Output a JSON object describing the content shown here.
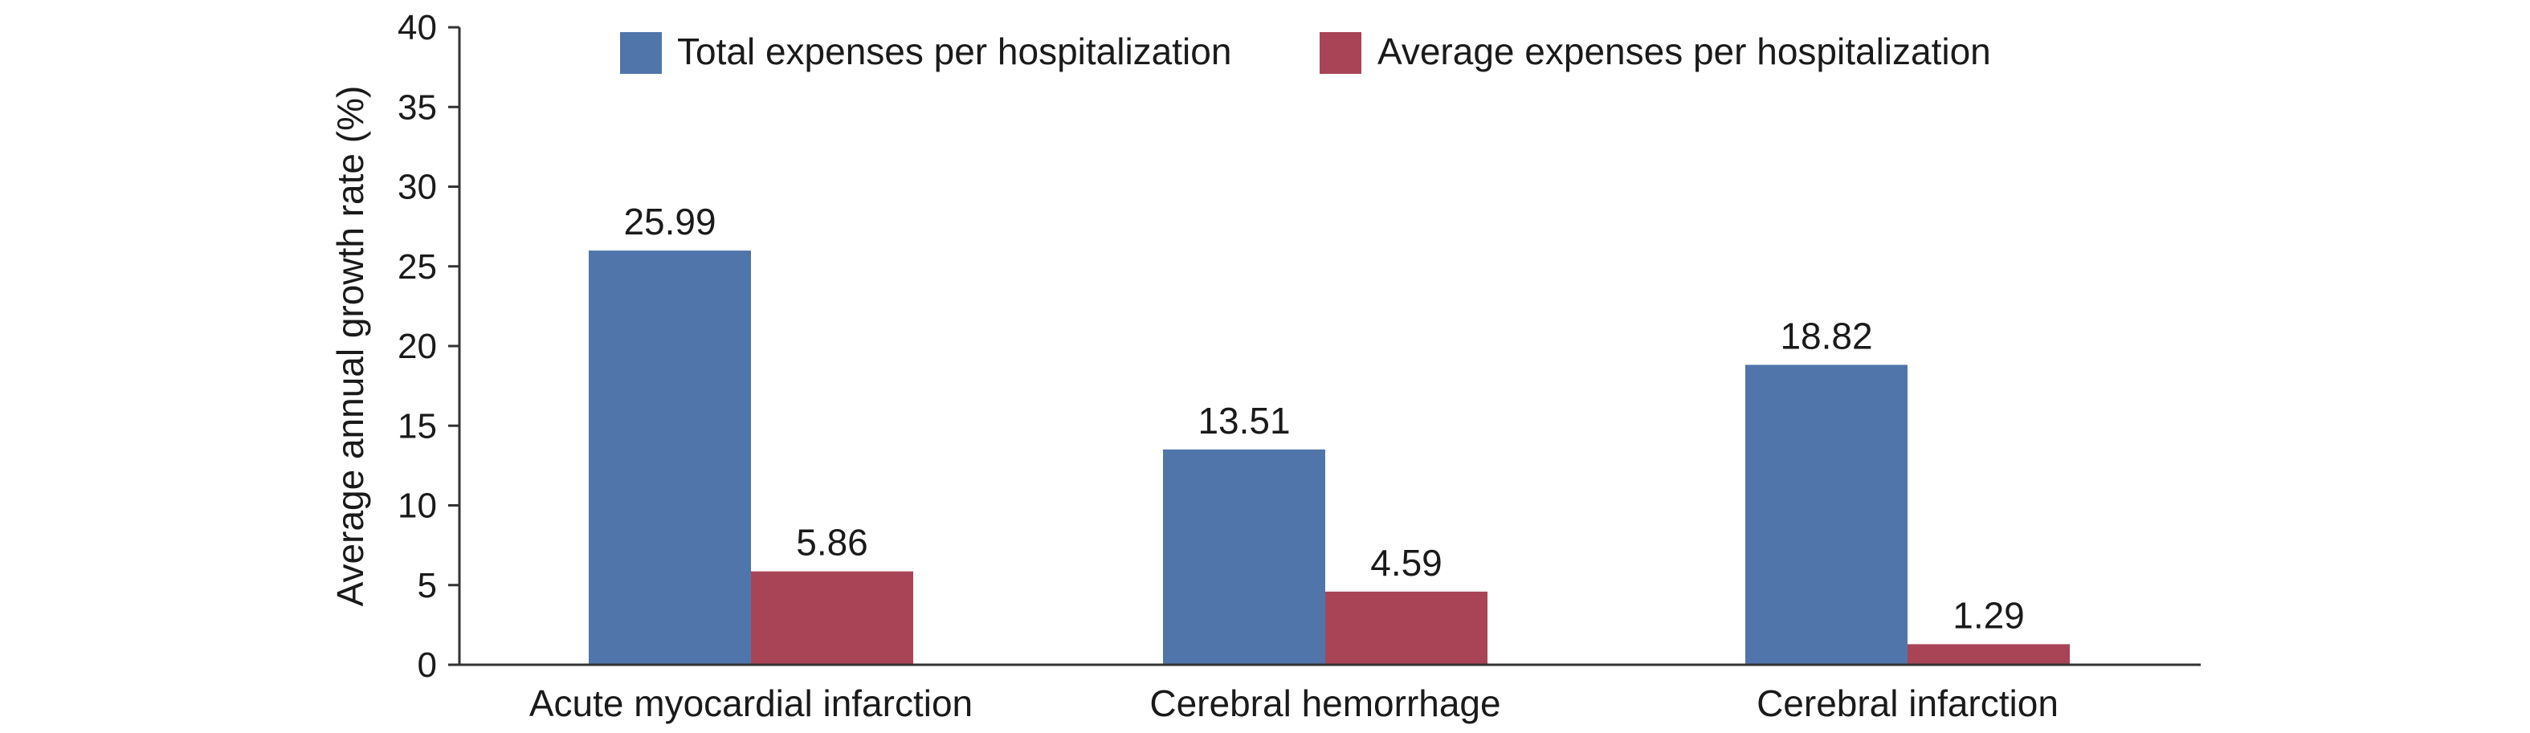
{
  "chart_data": {
    "type": "bar",
    "title": "",
    "xlabel": "",
    "ylabel": "Average annual growth rate (%)",
    "ylim": [
      0,
      40
    ],
    "yticks": [
      0,
      5,
      10,
      15,
      20,
      25,
      30,
      35,
      40
    ],
    "grid": false,
    "legend_position": "top",
    "categories": [
      "Acute myocardial infarction",
      "Cerebral hemorrhage",
      "Cerebral infarction"
    ],
    "series": [
      {
        "name": "Total expenses per hospitalization",
        "color": "#5075ab",
        "values": [
          25.99,
          13.51,
          18.82
        ],
        "labels": [
          "25.99",
          "13.51",
          "18.82"
        ]
      },
      {
        "name": "Average expenses per hospitalization",
        "color": "#a94456",
        "values": [
          5.86,
          4.59,
          1.29
        ],
        "labels": [
          "5.86",
          "4.59",
          "1.29"
        ]
      }
    ]
  }
}
